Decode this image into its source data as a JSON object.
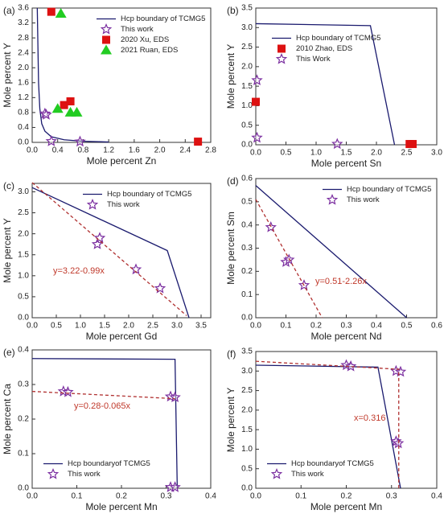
{
  "chart_data": [
    {
      "type": "scatter",
      "label": "(a)",
      "xlabel": "Mole percent Zn",
      "ylabel": "Mole percent Y",
      "xlim": [
        0,
        2.8
      ],
      "ylim": [
        0,
        3.6
      ],
      "xticks": [
        {
          "value": 0,
          "label": "0.0"
        },
        0.4,
        0.8,
        1.2,
        1.6,
        {
          "value": 2,
          "label": "2.0"
        },
        2.4,
        2.8
      ],
      "yticks": [
        {
          "value": 0,
          "label": "0.0"
        },
        0.4,
        0.8,
        1.2,
        1.6,
        {
          "value": 2,
          "label": "2.0"
        },
        2.4,
        2.8,
        3.2,
        3.6
      ],
      "legend": "upper right",
      "series": [
        {
          "name": "Hcp boundary of TCMG5",
          "style": "solid",
          "color": "#1a1a6e",
          "x": [
            0.08,
            0.1,
            0.12,
            0.15,
            0.2,
            0.3,
            0.5,
            0.8,
            1.2
          ],
          "values": [
            3.6,
            1.6,
            0.9,
            0.5,
            0.3,
            0.15,
            0.07,
            0.03,
            0.01
          ]
        },
        {
          "name": "This work",
          "marker": "star",
          "color": "#7b2fa0",
          "x": [
            0.2,
            0.22,
            0.3,
            0.75
          ],
          "values": [
            0.77,
            0.74,
            0.03,
            0.02
          ]
        },
        {
          "name": "2020 Xu, EDS",
          "marker": "square",
          "color": "#dd1111",
          "x": [
            0.3,
            0.5,
            0.6,
            2.6
          ],
          "values": [
            3.5,
            1.0,
            1.1,
            0.02
          ]
        },
        {
          "name": "2021 Ruan, EDS",
          "marker": "triangle",
          "color": "#22cc22",
          "x": [
            0.45,
            0.4,
            0.6,
            0.7
          ],
          "values": [
            3.45,
            0.9,
            0.8,
            0.8
          ]
        }
      ]
    },
    {
      "type": "scatter",
      "label": "(b)",
      "xlabel": "Mole percent Sn",
      "ylabel": "Mole percent Y",
      "xlim": [
        0,
        3
      ],
      "ylim": [
        0,
        3.5
      ],
      "xticks": [
        {
          "value": 0,
          "label": "0.0"
        },
        0.5,
        {
          "value": 1,
          "label": "1.0"
        },
        1.5,
        {
          "value": 2,
          "label": "2.0"
        },
        2.5,
        {
          "value": 3,
          "label": "3.0"
        }
      ],
      "yticks": [
        {
          "value": 0,
          "label": "0.0"
        },
        0.5,
        {
          "value": 1,
          "label": "1.0"
        },
        1.5,
        {
          "value": 2,
          "label": "2.0"
        },
        2.5,
        {
          "value": 3,
          "label": "3.0"
        },
        3.5
      ],
      "legend": "upper left",
      "series": [
        {
          "name": "Hcp boundary of TCMG5",
          "style": "solid",
          "color": "#1a1a6e",
          "x": [
            0,
            1.9,
            2.3
          ],
          "values": [
            3.1,
            3.05,
            0
          ]
        },
        {
          "name": "2010 Zhao, EDS",
          "marker": "square",
          "color": "#dd1111",
          "x": [
            0,
            2.55,
            2.6
          ],
          "values": [
            1.1,
            0.02,
            0.02
          ]
        },
        {
          "name": "This Work",
          "marker": "star",
          "color": "#7b2fa0",
          "x": [
            0.02,
            0.02,
            1.35
          ],
          "values": [
            1.65,
            0.18,
            0.02
          ]
        }
      ]
    },
    {
      "type": "scatter",
      "label": "(c)",
      "xlabel": "Mole percent Gd",
      "ylabel": "Mole percent Y",
      "xlim": [
        0,
        3.7
      ],
      "ylim": [
        0,
        3.2
      ],
      "xticks": [
        {
          "value": 0,
          "label": "0.0"
        },
        0.5,
        {
          "value": 1,
          "label": "1.0"
        },
        1.5,
        {
          "value": 2,
          "label": "2.0"
        },
        2.5,
        {
          "value": 3,
          "label": "3.0"
        },
        3.5
      ],
      "yticks": [
        {
          "value": 0,
          "label": "0.0"
        },
        0.5,
        {
          "value": 1,
          "label": "1.0"
        },
        1.5,
        {
          "value": 2,
          "label": "2.0"
        },
        2.5,
        {
          "value": 3,
          "label": "3.0"
        }
      ],
      "legend": "upper center",
      "annotation": "y=3.22-0.99x",
      "series": [
        {
          "name": "Hcp boundary of TCMG5",
          "style": "solid",
          "color": "#1a1a6e",
          "x": [
            0,
            2.8,
            3.25
          ],
          "values": [
            3.1,
            1.6,
            0
          ]
        },
        {
          "name": "This work",
          "marker": "star",
          "color": "#7b2fa0",
          "x": [
            1.35,
            1.4,
            2.15,
            2.65
          ],
          "values": [
            1.75,
            1.9,
            1.15,
            0.7
          ]
        },
        {
          "style": "dashed",
          "color": "#b03030",
          "x": [
            0,
            3.2
          ],
          "values": [
            3.22,
            0.05
          ]
        }
      ]
    },
    {
      "type": "scatter",
      "label": "(d)",
      "xlabel": "Mole percent Nd",
      "ylabel": "Mole percent Sm",
      "xlim": [
        0,
        0.6
      ],
      "ylim": [
        0,
        0.6
      ],
      "xticks": [
        {
          "value": 0,
          "label": "0.0"
        },
        0.1,
        0.2,
        0.3,
        0.4,
        0.5,
        0.6
      ],
      "yticks": [
        {
          "value": 0,
          "label": "0.0"
        },
        0.1,
        0.2,
        0.3,
        0.4,
        0.5,
        0.6
      ],
      "legend": "upper right",
      "annotation": "y=0.51-2.26x",
      "series": [
        {
          "name": "Hcp boundary of TCMG5",
          "style": "solid",
          "color": "#1a1a6e",
          "x": [
            0,
            0.5
          ],
          "values": [
            0.57,
            0
          ]
        },
        {
          "name": "This work",
          "marker": "star",
          "color": "#7b2fa0",
          "x": [
            0.05,
            0.1,
            0.11,
            0.16
          ],
          "values": [
            0.39,
            0.24,
            0.25,
            0.14
          ]
        },
        {
          "style": "dashed",
          "color": "#b03030",
          "x": [
            0,
            0.22
          ],
          "values": [
            0.51,
            0
          ]
        }
      ]
    },
    {
      "type": "scatter",
      "label": "(e)",
      "xlabel": "Mole percent Mn",
      "ylabel": "Mole percent Ca",
      "xlim": [
        0,
        0.4
      ],
      "ylim": [
        0,
        0.4
      ],
      "xticks": [
        {
          "value": 0,
          "label": "0.0"
        },
        0.1,
        0.2,
        0.3,
        0.4
      ],
      "yticks": [
        {
          "value": 0,
          "label": "0.0"
        },
        0.1,
        0.2,
        0.3,
        0.4
      ],
      "legend": "lower left",
      "annotation": "y=0.28-0.065x",
      "series": [
        {
          "name": "Hcp boundaryof TCMG5",
          "style": "solid",
          "color": "#1a1a6e",
          "x": [
            0,
            0.32,
            0.325
          ],
          "values": [
            0.375,
            0.373,
            0
          ]
        },
        {
          "name": "This work",
          "marker": "star",
          "color": "#7b2fa0",
          "x": [
            0.07,
            0.08,
            0.31,
            0.32,
            0.31,
            0.32
          ],
          "values": [
            0.28,
            0.278,
            0.265,
            0.263,
            0.003,
            0.003
          ]
        },
        {
          "style": "dashed",
          "color": "#b03030",
          "x": [
            0,
            0.32
          ],
          "values": [
            0.28,
            0.259
          ]
        }
      ]
    },
    {
      "type": "scatter",
      "label": "(f)",
      "xlabel": "Mole percent Mn",
      "ylabel": "Mole percent Y",
      "xlim": [
        0,
        0.4
      ],
      "ylim": [
        0,
        3.5
      ],
      "xticks": [
        {
          "value": 0,
          "label": "0.0"
        },
        0.1,
        0.2,
        0.3,
        0.4
      ],
      "yticks": [
        {
          "value": 0,
          "label": "0.0"
        },
        0.5,
        {
          "value": 1,
          "label": "1.0"
        },
        1.5,
        {
          "value": 2,
          "label": "2.0"
        },
        2.5,
        {
          "value": 3,
          "label": "3.0"
        },
        3.5
      ],
      "legend": "lower left",
      "annotation": "x=0.316",
      "series": [
        {
          "name": "Hcp boundaryof TCMG5",
          "style": "solid",
          "color": "#1a1a6e",
          "x": [
            0,
            0.27,
            0.32
          ],
          "values": [
            3.15,
            3.1,
            0
          ]
        },
        {
          "name": "This work",
          "marker": "star",
          "color": "#7b2fa0",
          "x": [
            0.2,
            0.21,
            0.31,
            0.32,
            0.31,
            0.315
          ],
          "values": [
            3.15,
            3.12,
            3.0,
            2.98,
            1.2,
            1.15
          ]
        },
        {
          "style": "dashed",
          "color": "#b03030",
          "x": [
            0,
            0.31,
            0.316,
            0.316
          ],
          "values": [
            3.25,
            3.05,
            3.05,
            0
          ]
        }
      ]
    }
  ]
}
